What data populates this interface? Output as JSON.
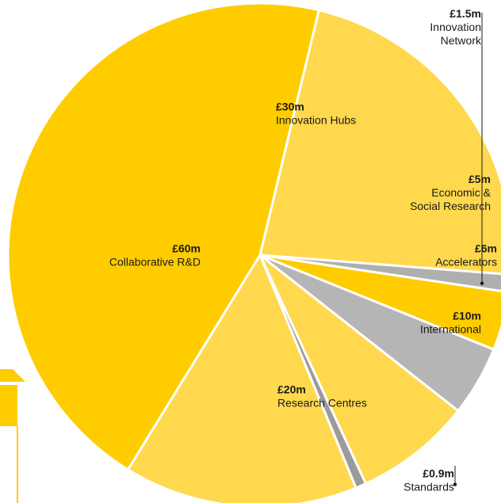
{
  "chart_data": {
    "type": "pie",
    "title": "",
    "unit": "£m",
    "slices": [
      {
        "value_label": "£30m",
        "name": "Innovation Hubs",
        "value": 30,
        "color": "#FFD84D"
      },
      {
        "value_label": "£1.5m",
        "name": "Innovation Network",
        "value": 1.5,
        "color": "#AFAFAF"
      },
      {
        "value_label": "£5m",
        "name": "Economic & Social Research",
        "value": 5,
        "color": "#FFCC00"
      },
      {
        "value_label": "£6m",
        "name": "Accelerators",
        "value": 6,
        "color": "#B5B5B5"
      },
      {
        "value_label": "£10m",
        "name": "International",
        "value": 10,
        "color": "#FFD84D"
      },
      {
        "value_label": "£0.9m",
        "name": "Standards",
        "value": 0.9,
        "color": "#9B9B9B"
      },
      {
        "value_label": "£20m",
        "name": "Research Centres",
        "value": 20,
        "color": "#FFD84D"
      },
      {
        "value_label": "£60m",
        "name": "Collaborative R&D",
        "value": 60,
        "color": "#FFCC00"
      }
    ],
    "arrow_color": "#FFCC00"
  }
}
